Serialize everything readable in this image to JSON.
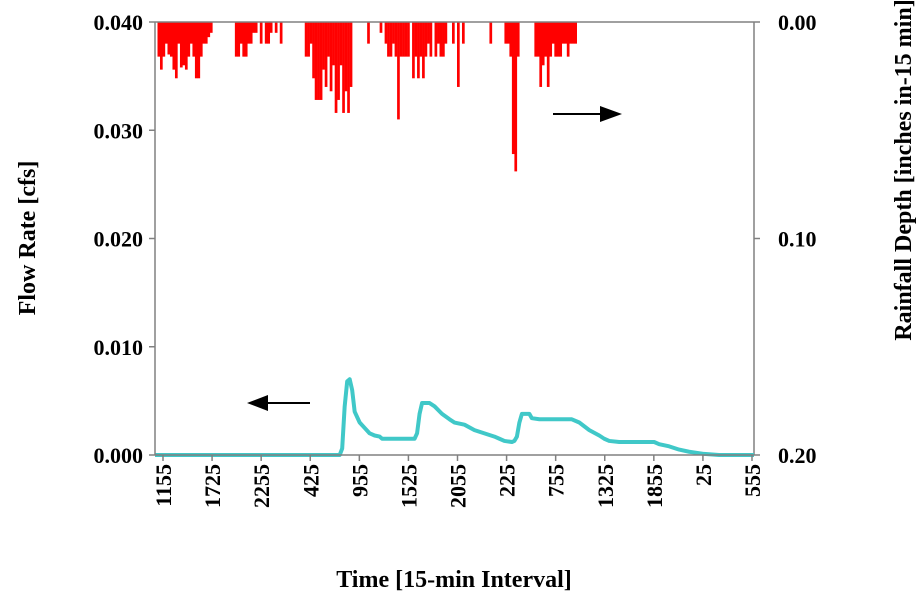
{
  "chart_data": {
    "type": "bar+line",
    "title": "",
    "xlabel": "Time [15-min Interval]",
    "ylabel_left": "Flow Rate [cfs]",
    "ylabel_right": "Rainfall Depth [inches in-15 min]",
    "ylim_left": [
      0,
      0.04
    ],
    "ylim_right_inverted": [
      0,
      0.2
    ],
    "yticks_left": [
      "0.000",
      "0.010",
      "0.020",
      "0.030",
      "0.040"
    ],
    "yticks_right": [
      "0.00",
      "0.10",
      "0.20"
    ],
    "xticks": [
      "1155",
      "1725",
      "2255",
      "425",
      "955",
      "1525",
      "2055",
      "225",
      "755",
      "1325",
      "1855",
      "25",
      "555"
    ],
    "n_intervals": 240,
    "grid": false,
    "colors": {
      "flow": "#40c8c8",
      "rain": "#ff0000",
      "axis": "#808080",
      "arrow": "#000000"
    },
    "series": [
      {
        "name": "Flow Rate",
        "axis": "left",
        "mark": "line",
        "points": [
          [
            0,
            0
          ],
          [
            74,
            0
          ],
          [
            75,
            0.0006
          ],
          [
            76,
            0.0045
          ],
          [
            77,
            0.0068
          ],
          [
            78,
            0.007
          ],
          [
            79,
            0.006
          ],
          [
            80,
            0.004
          ],
          [
            82,
            0.003
          ],
          [
            84,
            0.0025
          ],
          [
            86,
            0.002
          ],
          [
            88,
            0.0018
          ],
          [
            90,
            0.0017
          ],
          [
            91,
            0.0015
          ],
          [
            100,
            0.0015
          ],
          [
            104,
            0.0015
          ],
          [
            105,
            0.002
          ],
          [
            106,
            0.0038
          ],
          [
            107,
            0.0048
          ],
          [
            110,
            0.0048
          ],
          [
            112,
            0.0045
          ],
          [
            115,
            0.0038
          ],
          [
            118,
            0.0033
          ],
          [
            120,
            0.003
          ],
          [
            124,
            0.0028
          ],
          [
            128,
            0.0023
          ],
          [
            132,
            0.002
          ],
          [
            136,
            0.0017
          ],
          [
            138,
            0.0015
          ],
          [
            140,
            0.0013
          ],
          [
            143,
            0.0012
          ],
          [
            144,
            0.0013
          ],
          [
            145,
            0.0017
          ],
          [
            146,
            0.003
          ],
          [
            147,
            0.0038
          ],
          [
            150,
            0.0038
          ],
          [
            151,
            0.0034
          ],
          [
            154,
            0.0033
          ],
          [
            167,
            0.0033
          ],
          [
            170,
            0.003
          ],
          [
            174,
            0.0023
          ],
          [
            178,
            0.0018
          ],
          [
            180,
            0.0015
          ],
          [
            182,
            0.0013
          ],
          [
            186,
            0.0012
          ],
          [
            200,
            0.0012
          ],
          [
            202,
            0.001
          ],
          [
            206,
            0.0008
          ],
          [
            210,
            0.0005
          ],
          [
            214,
            0.0003
          ],
          [
            220,
            0.0001
          ],
          [
            226,
            0.0
          ],
          [
            240,
            0.0
          ]
        ]
      },
      {
        "name": "Rainfall Depth",
        "axis": "right",
        "mark": "bar",
        "points": [
          [
            1,
            0.016
          ],
          [
            2,
            0.022
          ],
          [
            3,
            0.016
          ],
          [
            4,
            0.01
          ],
          [
            5,
            0.015
          ],
          [
            6,
            0.016
          ],
          [
            7,
            0.022
          ],
          [
            8,
            0.026
          ],
          [
            9,
            0.01
          ],
          [
            10,
            0.021
          ],
          [
            11,
            0.02
          ],
          [
            12,
            0.022
          ],
          [
            13,
            0.016
          ],
          [
            14,
            0.01
          ],
          [
            15,
            0.016
          ],
          [
            16,
            0.026
          ],
          [
            17,
            0.026
          ],
          [
            18,
            0.016
          ],
          [
            19,
            0.01
          ],
          [
            20,
            0.01
          ],
          [
            21,
            0.007
          ],
          [
            22,
            0.005
          ],
          [
            32,
            0.016
          ],
          [
            33,
            0.016
          ],
          [
            34,
            0.01
          ],
          [
            35,
            0.016
          ],
          [
            36,
            0.016
          ],
          [
            37,
            0.01
          ],
          [
            38,
            0.01
          ],
          [
            39,
            0.005
          ],
          [
            40,
            0.005
          ],
          [
            42,
            0.01
          ],
          [
            44,
            0.01
          ],
          [
            45,
            0.01
          ],
          [
            46,
            0.005
          ],
          [
            48,
            0.005
          ],
          [
            50,
            0.01
          ],
          [
            60,
            0.016
          ],
          [
            61,
            0.016
          ],
          [
            62,
            0.01
          ],
          [
            63,
            0.026
          ],
          [
            64,
            0.036
          ],
          [
            65,
            0.036
          ],
          [
            66,
            0.036
          ],
          [
            67,
            0.022
          ],
          [
            68,
            0.03
          ],
          [
            69,
            0.016
          ],
          [
            70,
            0.032
          ],
          [
            71,
            0.02
          ],
          [
            72,
            0.042
          ],
          [
            73,
            0.036
          ],
          [
            74,
            0.02
          ],
          [
            75,
            0.042
          ],
          [
            76,
            0.032
          ],
          [
            77,
            0.042
          ],
          [
            78,
            0.03
          ],
          [
            85,
            0.01
          ],
          [
            90,
            0.005
          ],
          [
            92,
            0.01
          ],
          [
            93,
            0.016
          ],
          [
            94,
            0.016
          ],
          [
            95,
            0.01
          ],
          [
            96,
            0.016
          ],
          [
            97,
            0.045
          ],
          [
            98,
            0.016
          ],
          [
            99,
            0.016
          ],
          [
            100,
            0.016
          ],
          [
            101,
            0.016
          ],
          [
            103,
            0.026
          ],
          [
            104,
            0.016
          ],
          [
            105,
            0.026
          ],
          [
            106,
            0.016
          ],
          [
            107,
            0.026
          ],
          [
            108,
            0.016
          ],
          [
            109,
            0.01
          ],
          [
            110,
            0.016
          ],
          [
            112,
            0.016
          ],
          [
            113,
            0.01
          ],
          [
            114,
            0.016
          ],
          [
            115,
            0.016
          ],
          [
            116,
            0.01
          ],
          [
            119,
            0.01
          ],
          [
            121,
            0.03
          ],
          [
            123,
            0.01
          ],
          [
            134,
            0.01
          ],
          [
            140,
            0.01
          ],
          [
            141,
            0.01
          ],
          [
            142,
            0.016
          ],
          [
            143,
            0.061
          ],
          [
            144,
            0.069
          ],
          [
            145,
            0.016
          ],
          [
            152,
            0.016
          ],
          [
            153,
            0.016
          ],
          [
            154,
            0.03
          ],
          [
            155,
            0.02
          ],
          [
            156,
            0.016
          ],
          [
            157,
            0.03
          ],
          [
            158,
            0.016
          ],
          [
            159,
            0.01
          ],
          [
            160,
            0.016
          ],
          [
            161,
            0.016
          ],
          [
            162,
            0.016
          ],
          [
            163,
            0.01
          ],
          [
            164,
            0.01
          ],
          [
            165,
            0.016
          ],
          [
            166,
            0.01
          ],
          [
            167,
            0.01
          ],
          [
            168,
            0.01
          ]
        ]
      }
    ]
  }
}
